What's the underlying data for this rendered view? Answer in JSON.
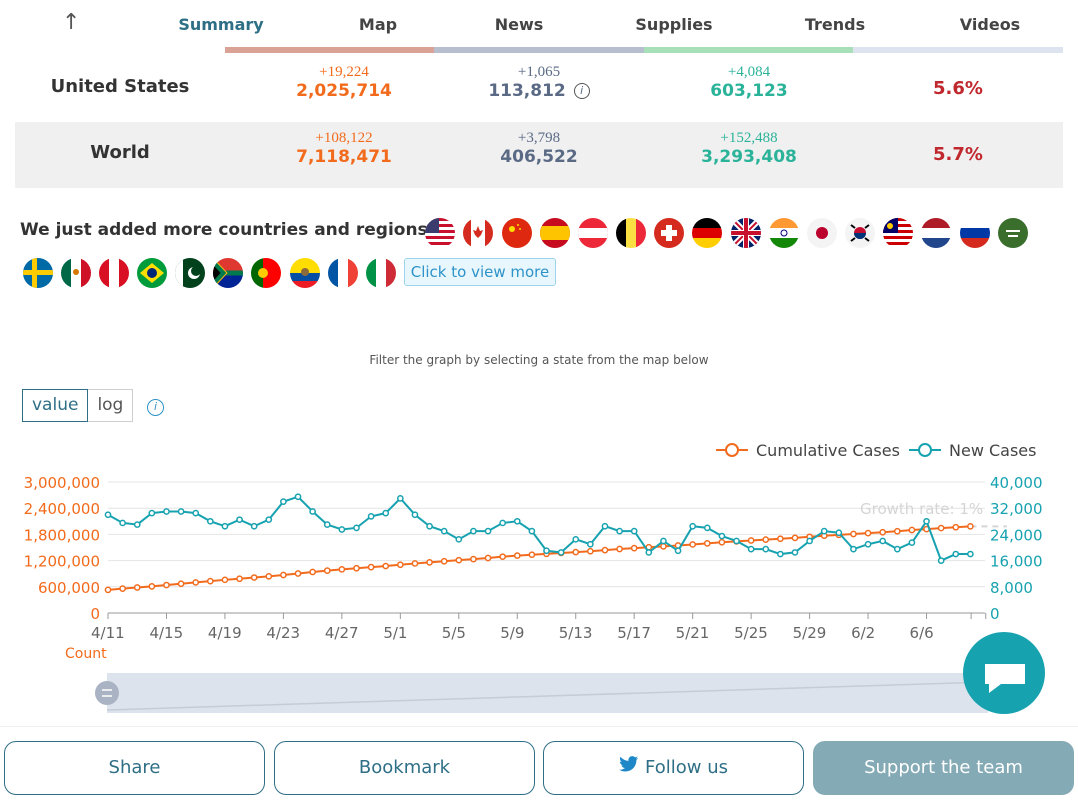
{
  "nav": {
    "tabs": [
      "Summary",
      "Map",
      "News",
      "Supplies",
      "Trends",
      "Videos"
    ],
    "active": "Summary"
  },
  "stats": [
    {
      "name": "United States",
      "cases_delta": "+19,224",
      "cases": "2,025,714",
      "deaths_delta": "+1,065",
      "deaths": "113,812",
      "recovered_delta": "+4,084",
      "recovered": "603,123",
      "rate": "5.6%"
    },
    {
      "name": "World",
      "cases_delta": "+108,122",
      "cases": "7,118,471",
      "deaths_delta": "+3,798",
      "deaths": "406,522",
      "recovered_delta": "+152,488",
      "recovered": "3,293,408",
      "rate": "5.7%"
    }
  ],
  "colors": {
    "cases": "#f26b1d",
    "deaths": "#5a6a85",
    "recovered": "#2bb39a",
    "rate": "#c0282e",
    "accent": "#2e6f86"
  },
  "added_text": "We just added more countries and regions!",
  "view_more": "Click to view more",
  "filter_text": "Filter the graph by selecting a state from the map below",
  "toggle": {
    "value": "value",
    "log": "log",
    "selected": "value"
  },
  "chart_data": {
    "type": "line",
    "legend": [
      "Cumulative Cases",
      "New Cases"
    ],
    "legend_position": "top-right",
    "x": [
      "4/11",
      "4/12",
      "4/13",
      "4/14",
      "4/15",
      "4/16",
      "4/17",
      "4/18",
      "4/19",
      "4/20",
      "4/21",
      "4/22",
      "4/23",
      "4/24",
      "4/25",
      "4/26",
      "4/27",
      "4/28",
      "4/29",
      "4/30",
      "5/1",
      "5/2",
      "5/3",
      "5/4",
      "5/5",
      "5/6",
      "5/7",
      "5/8",
      "5/9",
      "5/10",
      "5/11",
      "5/12",
      "5/13",
      "5/14",
      "5/15",
      "5/16",
      "5/17",
      "5/18",
      "5/19",
      "5/20",
      "5/21",
      "5/22",
      "5/23",
      "5/24",
      "5/25",
      "5/26",
      "5/27",
      "5/28",
      "5/29",
      "5/30",
      "5/31",
      "6/1",
      "6/2",
      "6/3",
      "6/4",
      "6/5",
      "6/6",
      "6/7",
      "6/8",
      "6/9"
    ],
    "x_ticks": [
      "4/11",
      "4/15",
      "4/19",
      "4/23",
      "4/27",
      "5/1",
      "5/5",
      "5/9",
      "5/13",
      "5/17",
      "5/21",
      "5/25",
      "5/29",
      "6/2",
      "6/6"
    ],
    "series": [
      {
        "name": "Cumulative Cases",
        "axis": "left",
        "values": [
          530000,
          558000,
          584000,
          610000,
          640000,
          670000,
          700000,
          730000,
          760000,
          785000,
          812000,
          840000,
          870000,
          905000,
          940000,
          970000,
          1000000,
          1025000,
          1050000,
          1075000,
          1105000,
          1135000,
          1160000,
          1185000,
          1210000,
          1235000,
          1260000,
          1290000,
          1315000,
          1335000,
          1355000,
          1375000,
          1395000,
          1415000,
          1440000,
          1465000,
          1485000,
          1505000,
          1525000,
          1545000,
          1570000,
          1595000,
          1620000,
          1640000,
          1660000,
          1680000,
          1700000,
          1720000,
          1745000,
          1770000,
          1790000,
          1810000,
          1830000,
          1850000,
          1872000,
          1900000,
          1920000,
          1945000,
          1965000,
          1985000
        ]
      },
      {
        "name": "New Cases",
        "axis": "right",
        "values": [
          30000,
          27500,
          27000,
          30500,
          31000,
          31000,
          30500,
          28000,
          26500,
          28500,
          26500,
          28500,
          34000,
          35500,
          31000,
          27000,
          25500,
          26000,
          29500,
          30500,
          35000,
          30000,
          26500,
          25000,
          22500,
          25000,
          25000,
          27500,
          28000,
          25000,
          19000,
          18500,
          22500,
          21000,
          26500,
          25000,
          25000,
          18500,
          22000,
          19000,
          26500,
          26000,
          23500,
          22000,
          19500,
          19500,
          18000,
          18500,
          22000,
          25000,
          24500,
          19500,
          21000,
          22000,
          19500,
          21500,
          28000,
          16000,
          18000,
          18000
        ]
      }
    ],
    "ylim_left": [
      0,
      3000000
    ],
    "ylim_right": [
      0,
      40000
    ],
    "y_ticks_left": [
      "0",
      "600,000",
      "1,200,000",
      "1,800,000",
      "2,400,000",
      "3,000,000"
    ],
    "y_ticks_right": [
      "0",
      "8,000",
      "16,000",
      "24,000",
      "32,000",
      "40,000"
    ],
    "annotation": "Growth rate: 1%",
    "xlabel": "Count",
    "grid": true
  },
  "buttons": {
    "share": "Share",
    "bookmark": "Bookmark",
    "follow": "Follow us",
    "support": "Support the team"
  },
  "icons": [
    "arrow-up-icon",
    "info-icon",
    "twitter-icon",
    "chat-icon",
    "slider-handle-icon"
  ]
}
